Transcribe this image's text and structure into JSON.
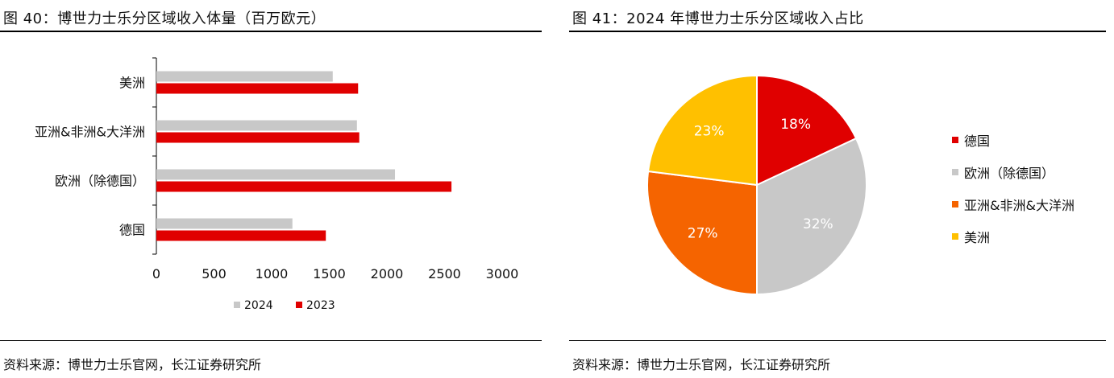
{
  "left": {
    "title": "图 40：博世力士乐分区域收入体量（百万欧元）",
    "source": "资料来源：博世力士乐官网，长江证券研究所"
  },
  "right": {
    "title": "图 41：2024 年博世力士乐分区域收入占比",
    "source": "资料来源：博世力士乐官网，长江证券研究所"
  },
  "chart_data": [
    {
      "type": "bar",
      "orientation": "horizontal",
      "title": "图 40：博世力士乐分区域收入体量（百万欧元）",
      "categories": [
        "美洲",
        "亚洲&非洲&大洋洲",
        "欧洲（除德国）",
        "德国"
      ],
      "series": [
        {
          "name": "2024",
          "color": "#c8c8c8",
          "values": [
            1530,
            1740,
            2070,
            1180
          ]
        },
        {
          "name": "2023",
          "color": "#e00000",
          "values": [
            1750,
            1760,
            2560,
            1470
          ]
        }
      ],
      "xlim": [
        0,
        3000
      ],
      "xticks": [
        0,
        500,
        1000,
        1500,
        2000,
        2500,
        3000
      ],
      "xtick_labels": [
        "0",
        "500",
        "1000",
        "1500",
        "2000",
        "2500",
        "3000"
      ],
      "grid": false,
      "legend_position": "bottom"
    },
    {
      "type": "pie",
      "title": "图 41：2024 年博世力士乐分区域收入占比",
      "labels": [
        "德国",
        "欧洲（除德国）",
        "亚洲&非洲&大洋洲",
        "美洲"
      ],
      "values": [
        18,
        32,
        27,
        23
      ],
      "value_labels": [
        "18%",
        "32%",
        "27%",
        "23%"
      ],
      "colors": [
        "#e00000",
        "#c8c8c8",
        "#f56400",
        "#ffc000"
      ],
      "start": "12 o'clock",
      "direction": "clockwise",
      "legend_position": "right"
    }
  ]
}
